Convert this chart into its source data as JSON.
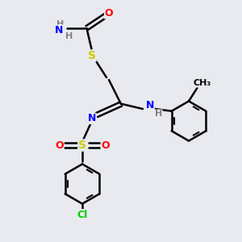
{
  "background_color": "#e8eaf0",
  "bond_color": "#000000",
  "atom_colors": {
    "N": "#0000ff",
    "O": "#ff0000",
    "S": "#cccc00",
    "Cl": "#00cc00",
    "H": "#808080",
    "C": "#000000"
  }
}
